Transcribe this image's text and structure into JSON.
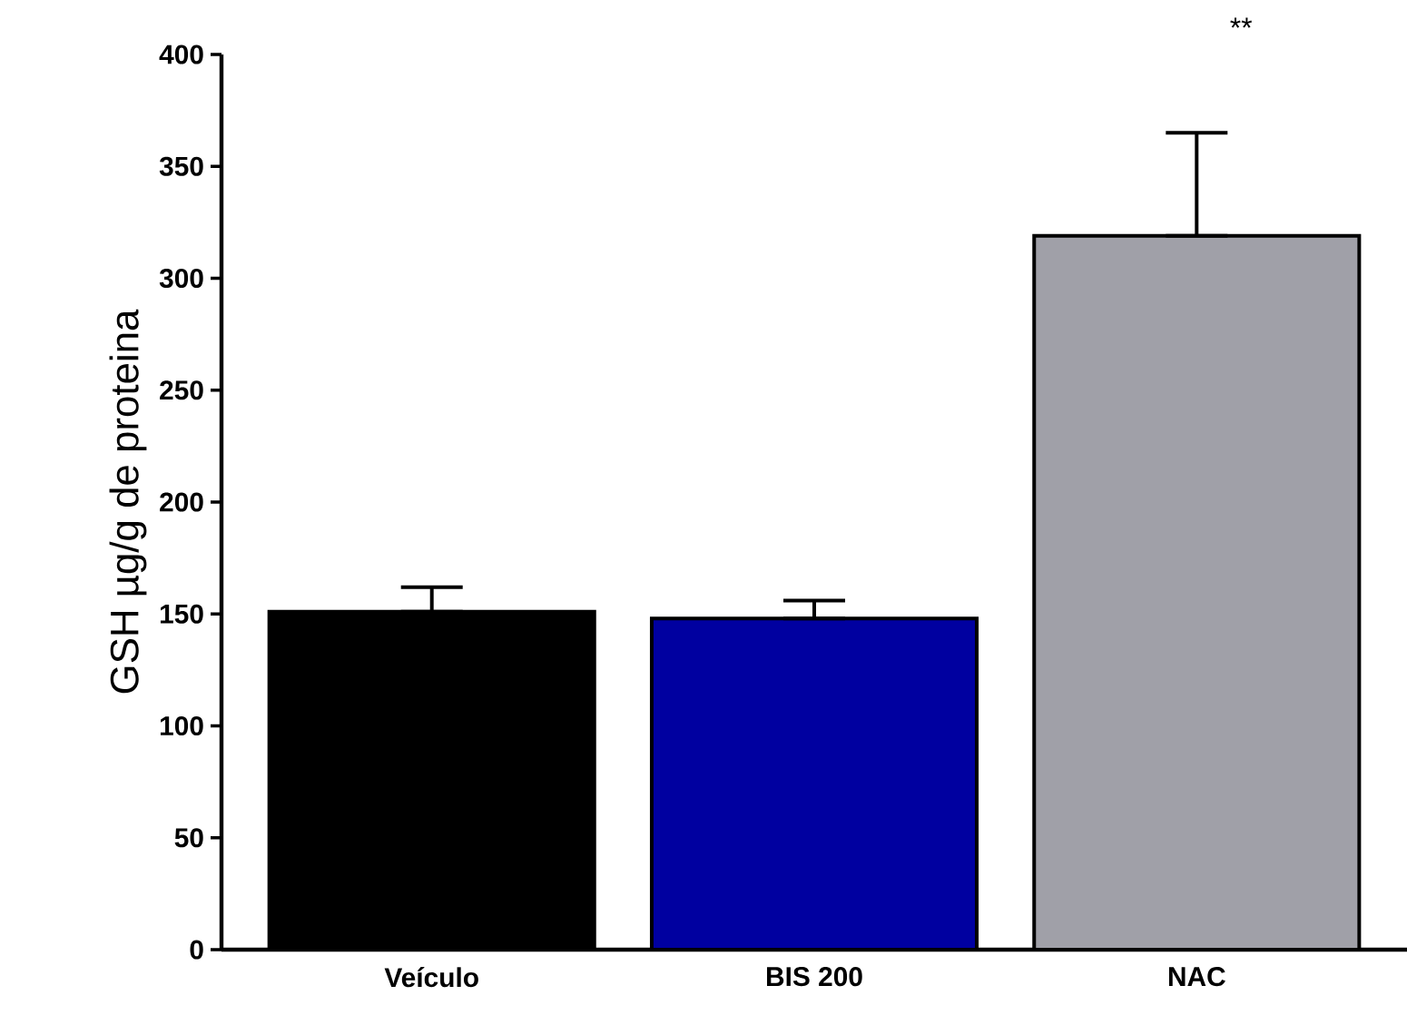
{
  "chart_data": {
    "type": "bar",
    "ylabel": "GSH µg/g de proteina",
    "categories": [
      "Veículo",
      "BIS 200",
      "NAC"
    ],
    "values": [
      151,
      148,
      319
    ],
    "colors": [
      "#000000",
      "#0000a0",
      "#a0a0a8"
    ],
    "errors": [
      [
        151,
        162
      ],
      [
        148,
        156
      ],
      [
        319,
        365
      ]
    ],
    "ylim": [
      0,
      400
    ],
    "yticks": [
      0,
      50,
      100,
      150,
      200,
      250,
      300,
      350,
      400
    ],
    "annotations": [
      "**"
    ],
    "grid": false
  }
}
